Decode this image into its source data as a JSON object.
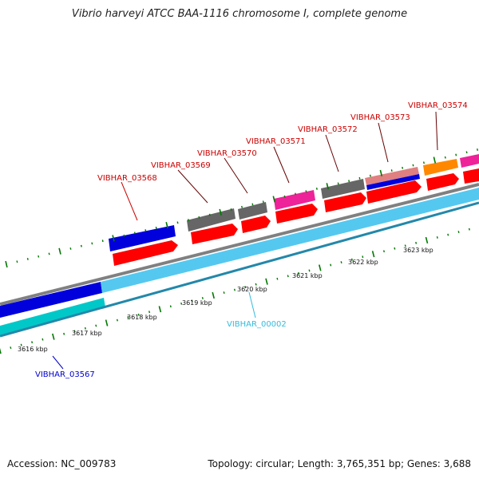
{
  "title": "Vibrio harveyi ATCC BAA-1116 chromosome I, complete genome",
  "footer": {
    "accession": "Accession: NC_009783",
    "summary": "Topology: circular; Length: 3,765,351 bp; Genes: 3,688"
  },
  "colors": {
    "cds": "#ff0000",
    "gene_blue": "#0000dd",
    "gene_gray": "#666666",
    "gene_magenta": "#ee2299",
    "gene_orange": "#ff8800",
    "gene_pink": "#e08080",
    "gene_cyan": "#00c8c8",
    "lightblue": "#55c8f0",
    "label_red": "#cc0000",
    "label_blue": "#0000cc",
    "label_cyan": "#33bbdd",
    "tick_green": "#007700"
  },
  "kbp_labels": [
    "3616 kbp",
    "3617 kbp",
    "3618 kbp",
    "3619 kbp",
    "3620 kbp",
    "3621 kbp",
    "3622 kbp",
    "3623 kbp"
  ],
  "gene_labels": {
    "g03567": "VIBHAR_03567",
    "g03568": "VIBHAR_03568",
    "g03569": "VIBHAR_03569",
    "g03570": "VIBHAR_03570",
    "g03571": "VIBHAR_03571",
    "g03572": "VIBHAR_03572",
    "g03573": "VIBHAR_03573",
    "g03574": "VIBHAR_03574",
    "g00002": "VIBHAR_00002"
  }
}
